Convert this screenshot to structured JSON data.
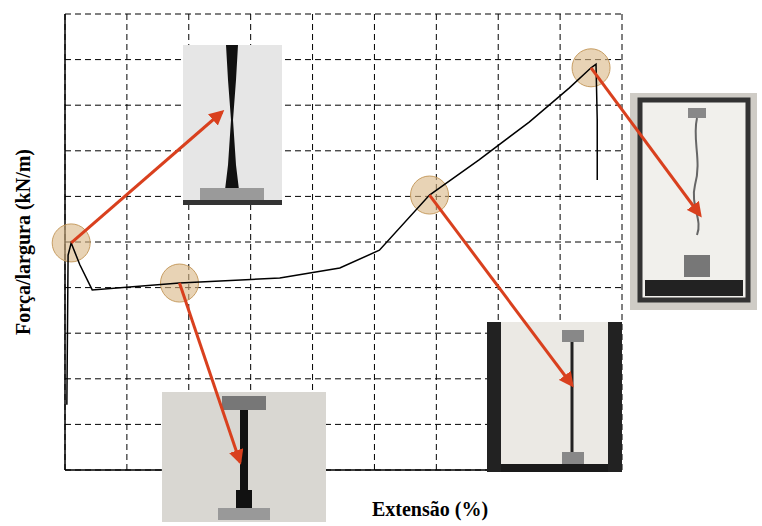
{
  "chart_data": {
    "type": "line",
    "x_label": "Extensão (%)",
    "y_label": "Força/largura (kN/m)",
    "x": [
      0.03,
      0.05,
      0.1,
      0.24,
      0.44,
      1.85,
      3.47,
      4.44,
      5.08,
      5.89,
      6.69,
      7.5,
      8.15,
      8.5,
      8.58,
      8.6,
      8.6
    ],
    "values": [
      1.43,
      4.71,
      4.98,
      4.5,
      3.95,
      4.1,
      4.21,
      4.43,
      4.82,
      6.03,
      6.8,
      7.63,
      8.38,
      8.82,
      8.9,
      7.68,
      6.36
    ],
    "color": "#000000",
    "xlim": [
      0,
      9
    ],
    "ylim": [
      0,
      10
    ],
    "xticks": [
      0,
      1,
      2,
      3,
      4,
      5,
      6,
      7,
      8,
      9
    ],
    "yticks": [
      0,
      1,
      2,
      3,
      4,
      5,
      6,
      7,
      8,
      9,
      10
    ],
    "grid": true,
    "tick_labels": false
  }
}
